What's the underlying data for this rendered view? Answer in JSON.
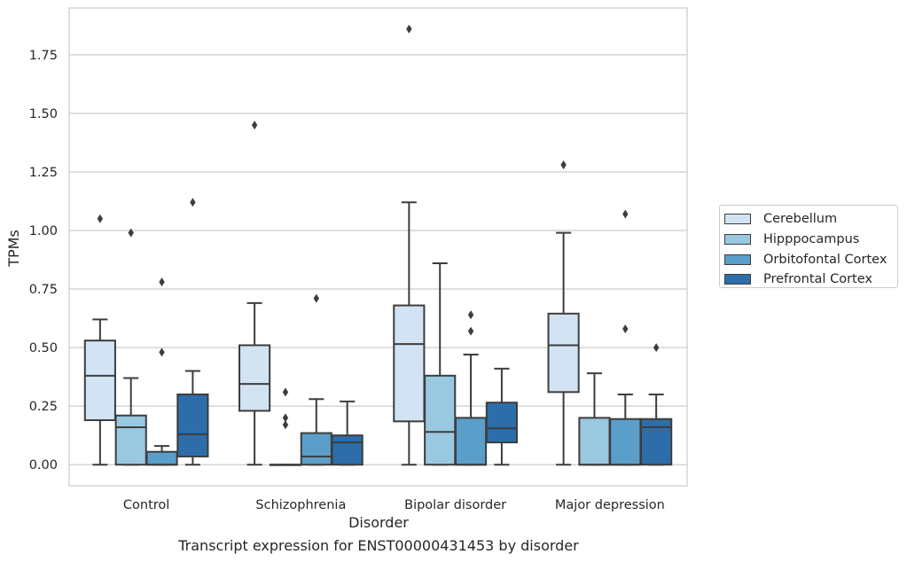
{
  "chart_data": {
    "type": "box",
    "title": "",
    "caption": "Transcript expression for ENST00000431453 by disorder",
    "xlabel": "Disorder",
    "ylabel": "TPMs",
    "ylim": [
      -0.09,
      1.95
    ],
    "yticks": [
      0.0,
      0.25,
      0.5,
      0.75,
      1.0,
      1.25,
      1.5,
      1.75
    ],
    "ytick_labels": [
      "0.00",
      "0.25",
      "0.50",
      "0.75",
      "1.00",
      "1.25",
      "1.50",
      "1.75"
    ],
    "grid": "horizontal",
    "legend_position": "right, outside plot",
    "categories": [
      "Control",
      "Schizophrenia",
      "Bipolar disorder",
      "Major depression"
    ],
    "series": [
      {
        "name": "Cerebellum",
        "color": "#d2e3f3",
        "boxes": [
          {
            "whislo": 0.0,
            "q1": 0.19,
            "med": 0.38,
            "q3": 0.53,
            "whishi": 0.62,
            "fliers": [
              1.05
            ]
          },
          {
            "whislo": 0.0,
            "q1": 0.23,
            "med": 0.345,
            "q3": 0.51,
            "whishi": 0.69,
            "fliers": [
              1.45
            ]
          },
          {
            "whislo": 0.0,
            "q1": 0.185,
            "med": 0.515,
            "q3": 0.68,
            "whishi": 1.12,
            "fliers": [
              1.86
            ]
          },
          {
            "whislo": 0.0,
            "q1": 0.31,
            "med": 0.51,
            "q3": 0.645,
            "whishi": 0.99,
            "fliers": [
              1.28
            ]
          }
        ]
      },
      {
        "name": "Hipppocampus",
        "color": "#9ac8e0",
        "boxes": [
          {
            "whislo": 0.0,
            "q1": 0.0,
            "med": 0.16,
            "q3": 0.21,
            "whishi": 0.37,
            "fliers": [
              0.99
            ]
          },
          {
            "whislo": 0.0,
            "q1": 0.0,
            "med": 0.0,
            "q3": 0.0,
            "whishi": 0.0,
            "fliers": [
              0.31,
              0.2,
              0.17
            ]
          },
          {
            "whislo": 0.0,
            "q1": 0.0,
            "med": 0.14,
            "q3": 0.38,
            "whishi": 0.86,
            "fliers": []
          },
          {
            "whislo": 0.0,
            "q1": 0.0,
            "med": 0.0,
            "q3": 0.2,
            "whishi": 0.39,
            "fliers": []
          }
        ]
      },
      {
        "name": "Orbitofontal Cortex",
        "color": "#5a9ec9",
        "boxes": [
          {
            "whislo": 0.0,
            "q1": 0.0,
            "med": 0.0,
            "q3": 0.055,
            "whishi": 0.08,
            "fliers": [
              0.78,
              0.48
            ]
          },
          {
            "whislo": 0.0,
            "q1": 0.0,
            "med": 0.035,
            "q3": 0.135,
            "whishi": 0.28,
            "fliers": [
              0.71
            ]
          },
          {
            "whislo": 0.0,
            "q1": 0.0,
            "med": 0.0,
            "q3": 0.2,
            "whishi": 0.47,
            "fliers": [
              0.64,
              0.57
            ]
          },
          {
            "whislo": 0.0,
            "q1": 0.0,
            "med": 0.0,
            "q3": 0.195,
            "whishi": 0.3,
            "fliers": [
              1.07,
              0.58
            ]
          }
        ]
      },
      {
        "name": "Prefrontal Cortex",
        "color": "#2d6eaa",
        "boxes": [
          {
            "whislo": 0.0,
            "q1": 0.035,
            "med": 0.13,
            "q3": 0.3,
            "whishi": 0.4,
            "fliers": [
              1.12
            ]
          },
          {
            "whislo": 0.0,
            "q1": 0.0,
            "med": 0.095,
            "q3": 0.125,
            "whishi": 0.27,
            "fliers": []
          },
          {
            "whislo": 0.0,
            "q1": 0.095,
            "med": 0.155,
            "q3": 0.265,
            "whishi": 0.41,
            "fliers": []
          },
          {
            "whislo": 0.0,
            "q1": 0.0,
            "med": 0.16,
            "q3": 0.195,
            "whishi": 0.3,
            "fliers": [
              0.5
            ]
          }
        ]
      }
    ]
  }
}
